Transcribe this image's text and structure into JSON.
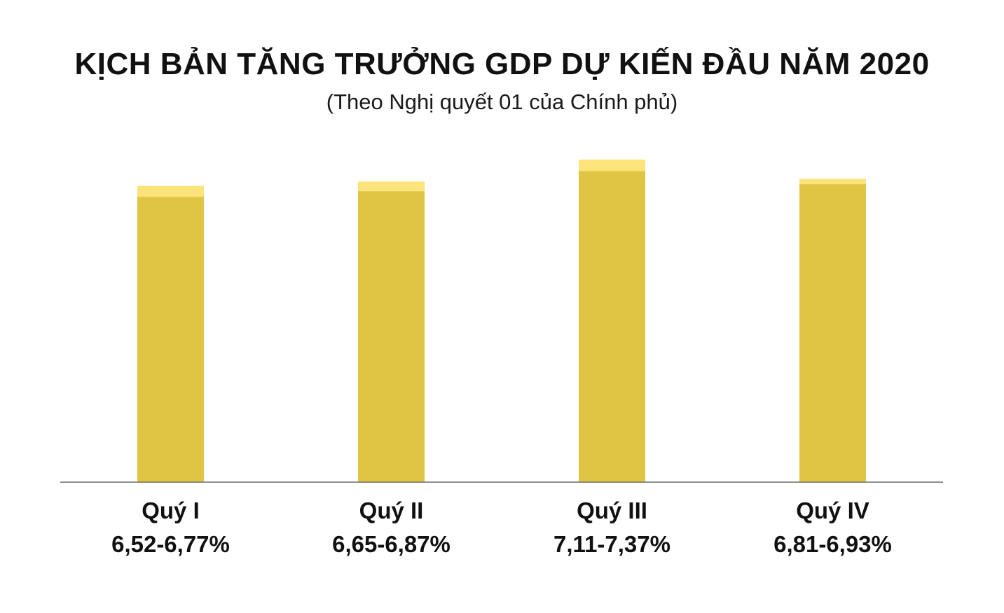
{
  "chart_data": {
    "type": "bar",
    "title": "KỊCH BẢN TĂNG TRƯỞNG GDP DỰ KIẾN ĐẦU NĂM 2020",
    "subtitle": "(Theo Nghị quyết 01 của Chính phủ)",
    "xlabel": "",
    "ylabel": "",
    "ylim": [
      0,
      7.5
    ],
    "grid": false,
    "legend": "none",
    "categories": [
      "Quý I",
      "Quý II",
      "Quý III",
      "Quý IV"
    ],
    "range_labels": [
      "6,52-6,77%",
      "6,65-6,87%",
      "7,11-7,37%",
      "6,81-6,93%"
    ],
    "series": [
      {
        "values": [
          6.52,
          6.65,
          7.11,
          6.81
        ]
      },
      {
        "values": [
          6.77,
          6.87,
          7.37,
          6.93
        ]
      }
    ],
    "colors": {
      "low": "#e0c545",
      "high": "#fde47a",
      "axis": "#6a6a6a"
    }
  }
}
